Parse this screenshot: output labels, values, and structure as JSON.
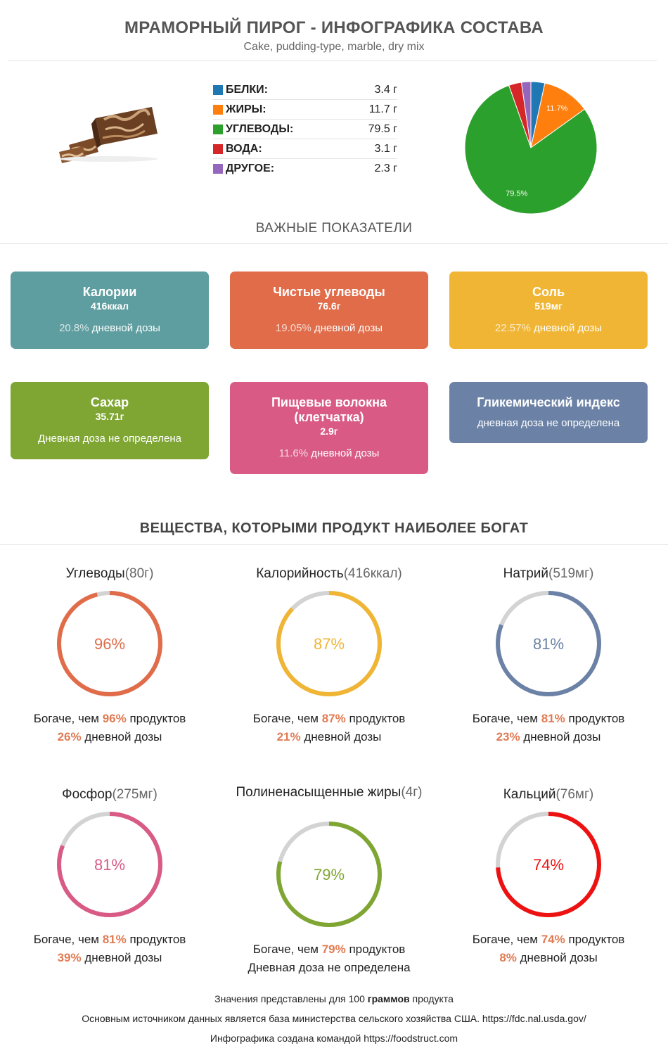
{
  "header": {
    "title": "МРАМОРНЫЙ ПИРОГ - ИНФОГРАФИКА СОСТАВА",
    "subtitle": "Cake, pudding-type, marble, dry mix"
  },
  "macros": [
    {
      "name": "БЕЛКИ:",
      "value": "3.4 г",
      "color": "#1f77b4"
    },
    {
      "name": "ЖИРЫ:",
      "value": "11.7 г",
      "color": "#ff7f0e"
    },
    {
      "name": "УГЛЕВОДЫ:",
      "value": "79.5 г",
      "color": "#2ca02c"
    },
    {
      "name": "ВОДА:",
      "value": "3.1 г",
      "color": "#d62728"
    },
    {
      "name": "ДРУГОЕ:",
      "value": "2.3 г",
      "color": "#9467bd"
    }
  ],
  "chart_data": {
    "type": "pie",
    "categories": [
      "Белки",
      "Жиры",
      "Углеводы",
      "Вода",
      "Другое"
    ],
    "values": [
      3.4,
      11.7,
      79.5,
      3.1,
      2.3
    ],
    "colors": [
      "#1f77b4",
      "#ff7f0e",
      "#2ca02c",
      "#d62728",
      "#9467bd"
    ],
    "slice_labels": [
      "",
      "11.7%",
      "79.5%",
      "",
      ""
    ]
  },
  "key_section": {
    "title": "ВАЖНЫЕ ПОКАЗАТЕЛИ"
  },
  "cards": [
    {
      "name": "Калории",
      "value": "416ккал",
      "pct": "20.8%",
      "daily": " дневной дозы",
      "color": "#5f9ea0"
    },
    {
      "name": "Чистые углеводы",
      "value": "76.6г",
      "pct": "19.05%",
      "daily": " дневной дозы",
      "color": "#e06c4a"
    },
    {
      "name": "Соль",
      "value": "519мг",
      "pct": "22.57%",
      "daily": " дневной дозы",
      "color": "#f0b534"
    },
    {
      "name": "Сахар",
      "value": "35.71г",
      "pct": "",
      "daily": "Дневная доза не определена",
      "color": "#7fa633"
    },
    {
      "name": "Пищевые волокна (клетчатка)",
      "value": "2.9г",
      "pct": "11.6%",
      "daily": " дневной дозы",
      "color": "#d95b85"
    },
    {
      "name": "Гликемический индекс",
      "value": "",
      "pct": "",
      "daily": "дневная доза не определена",
      "color": "#6b82a6"
    }
  ],
  "rich_section": {
    "title": "ВЕЩЕСТВА, КОТОРЫМИ ПРОДУКТ НАИБОЛЕЕ БОГАТ"
  },
  "nutrients": [
    {
      "name": "Углеводы",
      "amount": "(80г)",
      "percent": 96,
      "percent_label": "96%",
      "richer_prefix": "Богаче, чем ",
      "richer_suffix": " продуктов",
      "daily_pct": "26%",
      "daily": " дневной дозы",
      "color": "#e06c4a"
    },
    {
      "name": "Калорийность",
      "amount": "(416ккал)",
      "percent": 87,
      "percent_label": "87%",
      "richer_prefix": "Богаче, чем ",
      "richer_suffix": " продуктов",
      "daily_pct": "21%",
      "daily": " дневной дозы",
      "color": "#f0b534"
    },
    {
      "name": "Натрий",
      "amount": "(519мг)",
      "percent": 81,
      "percent_label": "81%",
      "richer_prefix": "Богаче, чем ",
      "richer_suffix": " продуктов",
      "daily_pct": "23%",
      "daily": " дневной дозы",
      "color": "#6b82a6"
    },
    {
      "name": "Фосфор",
      "amount": "(275мг)",
      "percent": 81,
      "percent_label": "81%",
      "richer_prefix": "Богаче, чем ",
      "richer_suffix": " продуктов",
      "daily_pct": "39%",
      "daily": " дневной дозы",
      "color": "#d95b85"
    },
    {
      "name": "Полиненасыщенные жиры",
      "amount": "(4г)",
      "percent": 79,
      "percent_label": "79%",
      "richer_prefix": "Богаче, чем ",
      "richer_suffix": " продуктов",
      "daily_pct": "",
      "daily": "Дневная доза не определена",
      "color": "#7fa633"
    },
    {
      "name": "Кальций",
      "amount": "(76мг)",
      "percent": 74,
      "percent_label": "74%",
      "richer_prefix": "Богаче, чем ",
      "richer_suffix": " продуктов",
      "daily_pct": "8%",
      "daily": " дневной дозы",
      "color": "#ee1111"
    }
  ],
  "footer": {
    "line1_prefix": "Значения представлены для 100 ",
    "line1_bold": "граммов",
    "line1_suffix": " продукта",
    "line2": "Основным источником данных является база министерства сельского хозяйства США. https://fdc.nal.usda.gov/",
    "line3": "Инфографика создана командой https://foodstruct.com"
  }
}
